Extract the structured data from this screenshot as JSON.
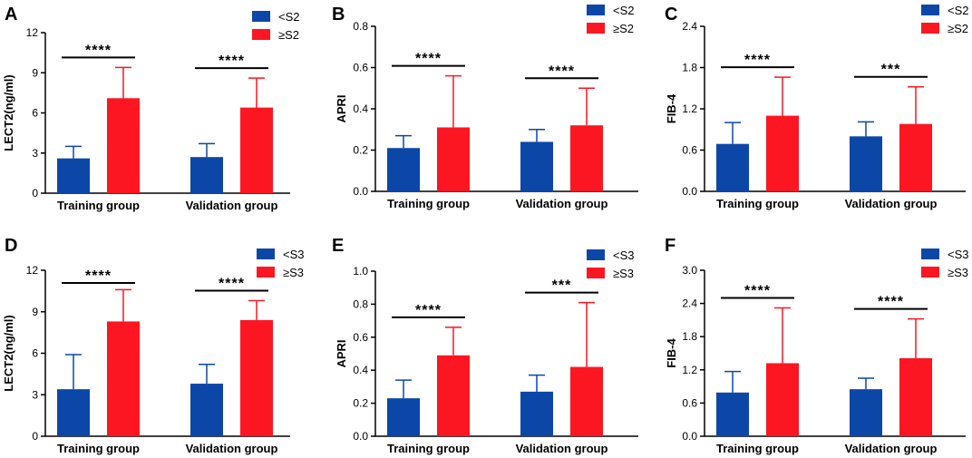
{
  "colors": {
    "low": "#0c47a8",
    "high": "#fc1622",
    "axis": "#000000"
  },
  "chart_data": [
    {
      "panel": "A",
      "type": "bar",
      "categories": [
        "Training group",
        "Validation group"
      ],
      "series": [
        {
          "name": "<S2",
          "values": [
            2.6,
            2.7
          ],
          "errors": [
            3.5,
            3.7
          ]
        },
        {
          "name": "≥S2",
          "values": [
            7.1,
            6.4
          ],
          "errors": [
            9.4,
            8.6
          ]
        }
      ],
      "ylabel": "LECT2(ng/ml)",
      "ylim": [
        0,
        12
      ],
      "yticks": [
        "0",
        "3",
        "6",
        "9",
        "12"
      ],
      "significance": [
        "****",
        "****"
      ],
      "legend": "top-right"
    },
    {
      "panel": "B",
      "type": "bar",
      "categories": [
        "Training group",
        "Validation group"
      ],
      "series": [
        {
          "name": "<S2",
          "values": [
            0.21,
            0.24
          ],
          "errors": [
            0.27,
            0.3
          ]
        },
        {
          "name": "≥S2",
          "values": [
            0.31,
            0.32
          ],
          "errors": [
            0.56,
            0.5
          ]
        }
      ],
      "ylabel": "APRI",
      "ylim": [
        0,
        0.8
      ],
      "yticks": [
        "0.0",
        "0.2",
        "0.4",
        "0.6",
        "0.8"
      ],
      "significance": [
        "****",
        "****"
      ],
      "legend": "top-right"
    },
    {
      "panel": "C",
      "type": "bar",
      "categories": [
        "Training group",
        "Validation group"
      ],
      "series": [
        {
          "name": "<S2",
          "values": [
            0.69,
            0.8
          ],
          "errors": [
            1.0,
            1.01
          ]
        },
        {
          "name": "≥S2",
          "values": [
            1.1,
            0.98
          ],
          "errors": [
            1.66,
            1.52
          ]
        }
      ],
      "ylabel": "FIB-4",
      "ylim": [
        0,
        2.4
      ],
      "yticks": [
        "0.0",
        "0.6",
        "1.2",
        "1.8",
        "2.4"
      ],
      "significance": [
        "****",
        "***"
      ],
      "legend": "top-right"
    },
    {
      "panel": "D",
      "type": "bar",
      "categories": [
        "Training group",
        "Validation group"
      ],
      "series": [
        {
          "name": "<S3",
          "values": [
            3.4,
            3.8
          ],
          "errors": [
            5.9,
            5.2
          ]
        },
        {
          "name": "≥S3",
          "values": [
            8.3,
            8.4
          ],
          "errors": [
            10.6,
            9.8
          ]
        }
      ],
      "ylabel": "LECT2(ng/ml)",
      "ylim": [
        0,
        12
      ],
      "yticks": [
        "0",
        "3",
        "6",
        "9",
        "12"
      ],
      "significance": [
        "****",
        "****"
      ],
      "legend": "top-right"
    },
    {
      "panel": "E",
      "type": "bar",
      "categories": [
        "Training group",
        "Validation group"
      ],
      "series": [
        {
          "name": "<S3",
          "values": [
            0.23,
            0.27
          ],
          "errors": [
            0.34,
            0.37
          ]
        },
        {
          "name": "≥S3",
          "values": [
            0.49,
            0.42
          ],
          "errors": [
            0.66,
            0.81
          ]
        }
      ],
      "ylabel": "APRI",
      "ylim": [
        0,
        1.0
      ],
      "yticks": [
        "0.0",
        "0.2",
        "0.4",
        "0.6",
        "0.8",
        "1.0"
      ],
      "significance": [
        "****",
        "***"
      ],
      "legend": "top-right"
    },
    {
      "panel": "F",
      "type": "bar",
      "categories": [
        "Training group",
        "Validation group"
      ],
      "series": [
        {
          "name": "<S3",
          "values": [
            0.79,
            0.85
          ],
          "errors": [
            1.17,
            1.05
          ]
        },
        {
          "name": "≥S3",
          "values": [
            1.32,
            1.41
          ],
          "errors": [
            2.32,
            2.12
          ]
        }
      ],
      "ylabel": "FIB-4",
      "ylim": [
        0,
        3.0
      ],
      "yticks": [
        "0.0",
        "0.6",
        "1.2",
        "1.8",
        "2.4",
        "3.0"
      ],
      "significance": [
        "****",
        "****"
      ],
      "legend": "top-right"
    }
  ]
}
